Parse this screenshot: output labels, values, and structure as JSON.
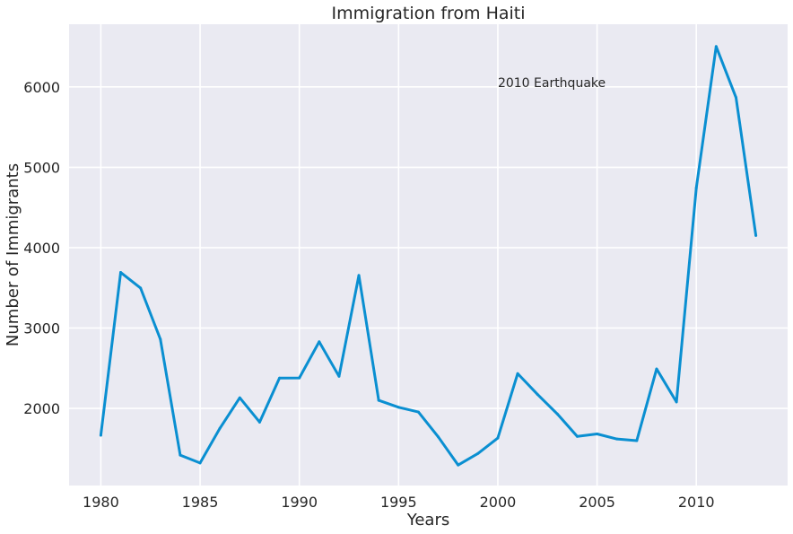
{
  "chart_data": {
    "type": "line",
    "title": "Immigration from Haiti",
    "xlabel": "Years",
    "ylabel": "Number of Immigrants",
    "xlim": [
      1978.4,
      2014.6
    ],
    "ylim": [
      1040,
      6780
    ],
    "xticks": [
      1980,
      1985,
      1990,
      1995,
      2000,
      2005,
      2010
    ],
    "yticks": [
      2000,
      3000,
      4000,
      5000,
      6000
    ],
    "grid": true,
    "background_color": "#eaeaf2",
    "grid_color": "#ffffff",
    "series": [
      {
        "color": "#0a8fd1",
        "x": [
          1980,
          1981,
          1982,
          1983,
          1984,
          1985,
          1986,
          1987,
          1988,
          1989,
          1990,
          1991,
          1992,
          1993,
          1994,
          1995,
          1996,
          1997,
          1998,
          1999,
          2000,
          2001,
          2002,
          2003,
          2004,
          2005,
          2006,
          2007,
          2008,
          2009,
          2010,
          2011,
          2012,
          2013
        ],
        "values": [
          1666,
          3692,
          3498,
          2860,
          1418,
          1321,
          1753,
          2132,
          1829,
          2377,
          2379,
          2829,
          2399,
          3655,
          2100,
          2014,
          1955,
          1645,
          1295,
          1439,
          1631,
          2433,
          2174,
          1930,
          1652,
          1682,
          1619,
          1598,
          2491,
          2080,
          4744,
          6503,
          5868,
          4152
        ]
      }
    ],
    "annotations": [
      {
        "text": "2010 Earthquake",
        "x": 2000,
        "y": 6000
      }
    ]
  }
}
